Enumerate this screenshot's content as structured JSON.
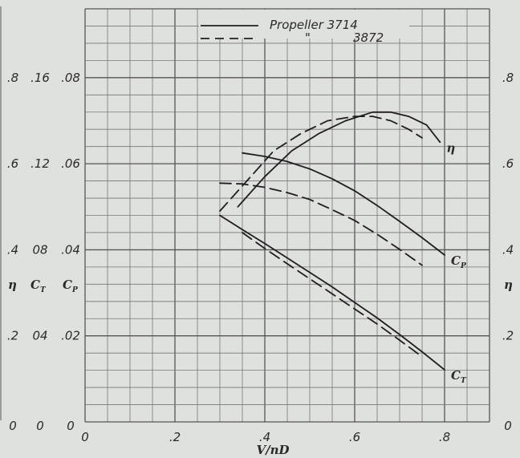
{
  "chart_data": {
    "type": "line",
    "title": "",
    "xlabel": "V/nD",
    "xlim": [
      0,
      0.9
    ],
    "x_ticks": [
      "0",
      ".2",
      ".4",
      ".6",
      ".8"
    ],
    "grid": true,
    "legend": {
      "placement": "top-center",
      "entries": [
        {
          "style": "solid",
          "label": "Propeller 3714"
        },
        {
          "style": "dashed",
          "label": "\"",
          "label2": "3872"
        }
      ]
    },
    "axes": {
      "eta": {
        "label": "η",
        "ylim": [
          0,
          0.96
        ],
        "ticks_left": [
          "0",
          ".2",
          ".4",
          ".6",
          ".8"
        ],
        "ticks_right": [
          "0",
          ".2",
          ".4",
          ".6",
          ".8"
        ]
      },
      "ct": {
        "label": "C_T",
        "ylim": [
          0,
          0.192
        ],
        "ticks": [
          "0",
          "04",
          "08",
          ".12",
          ".16"
        ]
      },
      "cp": {
        "label": "C_P",
        "ylim": [
          0,
          0.096
        ],
        "ticks": [
          "0",
          ".02",
          ".04",
          ".06",
          ".08"
        ]
      }
    },
    "series": [
      {
        "propeller": "3714",
        "quantity": "eta",
        "axis": "eta",
        "style": "solid",
        "x": [
          0.34,
          0.4,
          0.46,
          0.52,
          0.58,
          0.64,
          0.68,
          0.72,
          0.76,
          0.79
        ],
        "y": [
          0.5,
          0.57,
          0.63,
          0.67,
          0.7,
          0.72,
          0.72,
          0.71,
          0.69,
          0.65
        ]
      },
      {
        "propeller": "3872",
        "quantity": "eta",
        "axis": "eta",
        "style": "dashed",
        "x": [
          0.3,
          0.36,
          0.42,
          0.48,
          0.54,
          0.6,
          0.64,
          0.68,
          0.72,
          0.75
        ],
        "y": [
          0.49,
          0.56,
          0.63,
          0.67,
          0.7,
          0.71,
          0.71,
          0.7,
          0.68,
          0.66
        ]
      },
      {
        "propeller": "3714",
        "quantity": "C_P",
        "axis": "cp",
        "style": "solid",
        "x": [
          0.35,
          0.4,
          0.45,
          0.5,
          0.55,
          0.6,
          0.65,
          0.7,
          0.75,
          0.8
        ],
        "y": [
          0.0625,
          0.0617,
          0.0605,
          0.0588,
          0.0565,
          0.0537,
          0.0503,
          0.0466,
          0.0428,
          0.0388
        ]
      },
      {
        "propeller": "3872",
        "quantity": "C_P",
        "axis": "cp",
        "style": "dashed",
        "x": [
          0.3,
          0.35,
          0.4,
          0.45,
          0.5,
          0.55,
          0.6,
          0.65,
          0.7,
          0.75
        ],
        "y": [
          0.0555,
          0.0553,
          0.0545,
          0.0533,
          0.0517,
          0.0493,
          0.0468,
          0.0436,
          0.0401,
          0.0364
        ]
      },
      {
        "propeller": "3714",
        "quantity": "C_T",
        "axis": "ct",
        "style": "solid",
        "x": [
          0.3,
          0.35,
          0.4,
          0.45,
          0.5,
          0.55,
          0.6,
          0.65,
          0.7,
          0.75,
          0.8
        ],
        "y": [
          0.096,
          0.0894,
          0.0829,
          0.0762,
          0.0695,
          0.0627,
          0.0555,
          0.0483,
          0.0406,
          0.0326,
          0.0242
        ]
      },
      {
        "propeller": "3872",
        "quantity": "C_T",
        "axis": "ct",
        "style": "dashed",
        "x": [
          0.35,
          0.4,
          0.45,
          0.5,
          0.55,
          0.6,
          0.65,
          0.7,
          0.75
        ],
        "y": [
          0.088,
          0.0806,
          0.0735,
          0.0665,
          0.0595,
          0.0525,
          0.0455,
          0.038,
          0.0303
        ]
      }
    ],
    "curve_labels": [
      {
        "text": "η",
        "series_index": 0
      },
      {
        "main": "C",
        "sub": "P",
        "series_index": 2
      },
      {
        "main": "C",
        "sub": "T",
        "series_index": 4
      }
    ]
  }
}
